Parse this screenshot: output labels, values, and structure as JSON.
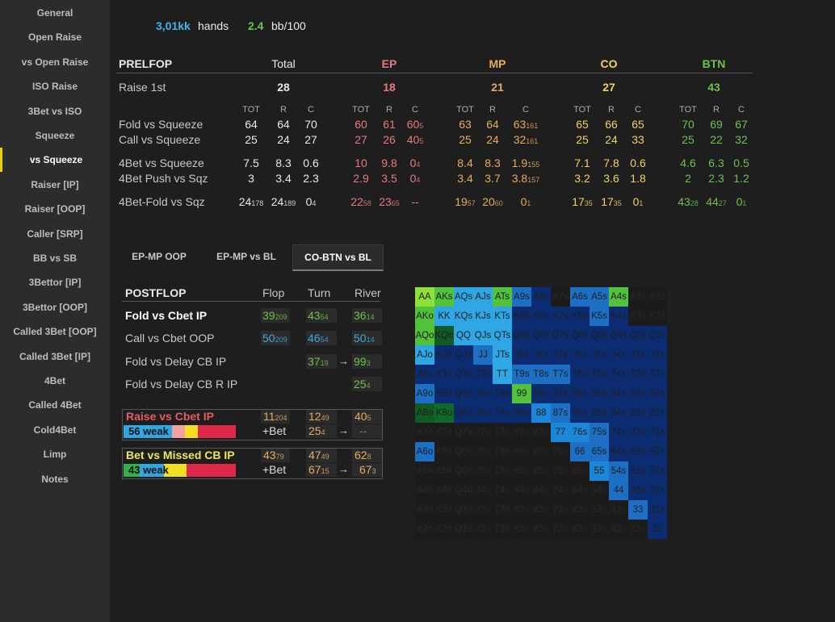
{
  "sidebar": {
    "items": [
      {
        "label": "General"
      },
      {
        "label": "Open Raise"
      },
      {
        "label": "vs Open Raise"
      },
      {
        "label": "ISO Raise"
      },
      {
        "label": "3Bet vs ISO"
      },
      {
        "label": "Squeeze"
      },
      {
        "label": "vs Squeeze",
        "active": true
      },
      {
        "label": "Raiser [IP]"
      },
      {
        "label": "Raiser [OOP]"
      },
      {
        "label": "Caller [SRP]"
      },
      {
        "label": "BB vs SB"
      },
      {
        "label": "3Bettor [IP]"
      },
      {
        "label": "3Bettor [OOP]"
      },
      {
        "label": "Called 3Bet [OOP]"
      },
      {
        "label": "Called 3Bet [IP]"
      },
      {
        "label": "4Bet"
      },
      {
        "label": "Called 4Bet"
      },
      {
        "label": "Cold4Bet"
      },
      {
        "label": "Limp"
      },
      {
        "label": "Notes"
      }
    ]
  },
  "summary": {
    "hands_value": "3,01kk",
    "hands_label": "hands",
    "bb_value": "2.4",
    "bb_label": "bb/100"
  },
  "preflop": {
    "title": "PRELFOP",
    "positions": [
      "Total",
      "EP",
      "MP",
      "CO",
      "BTN"
    ],
    "raise_first_label": "Raise 1st",
    "raise_first": [
      "28",
      "18",
      "21",
      "27",
      "43"
    ],
    "sub_headers": [
      "TOT",
      "R",
      "C"
    ],
    "rows": [
      {
        "label": "Fold vs Squeeze",
        "values": [
          [
            "64",
            "",
            ""
          ],
          [
            "64",
            "",
            ""
          ],
          [
            "70",
            "",
            ""
          ],
          [
            "60",
            "",
            ""
          ],
          [
            "61",
            "",
            ""
          ],
          [
            "60",
            "5",
            ""
          ],
          [
            "63",
            "",
            ""
          ],
          [
            "64",
            "",
            ""
          ],
          [
            "63",
            "161",
            ""
          ],
          [
            "65",
            "",
            ""
          ],
          [
            "66",
            "",
            ""
          ],
          [
            "65",
            "",
            ""
          ],
          [
            "70",
            "",
            ""
          ],
          [
            "69",
            "",
            ""
          ],
          [
            "67",
            "",
            ""
          ]
        ]
      },
      {
        "label": "Call vs Squeeze",
        "values": [
          [
            "25",
            "",
            ""
          ],
          [
            "24",
            "",
            ""
          ],
          [
            "27",
            "",
            ""
          ],
          [
            "27",
            "",
            ""
          ],
          [
            "26",
            "",
            ""
          ],
          [
            "40",
            "5",
            ""
          ],
          [
            "25",
            "",
            ""
          ],
          [
            "24",
            "",
            ""
          ],
          [
            "32",
            "161",
            ""
          ],
          [
            "25",
            "",
            ""
          ],
          [
            "24",
            "",
            ""
          ],
          [
            "33",
            "",
            ""
          ],
          [
            "25",
            "",
            ""
          ],
          [
            "22",
            "",
            ""
          ],
          [
            "32",
            "",
            ""
          ]
        ]
      },
      {
        "label": "4Bet vs Squeeze",
        "values": [
          [
            "7.5",
            "",
            ""
          ],
          [
            "8.3",
            "",
            ""
          ],
          [
            "0.6",
            "",
            ""
          ],
          [
            "10",
            "",
            ""
          ],
          [
            "9.8",
            "",
            ""
          ],
          [
            "0",
            "4",
            ""
          ],
          [
            "8.4",
            "",
            ""
          ],
          [
            "8.3",
            "",
            ""
          ],
          [
            "1.9",
            "155",
            ""
          ],
          [
            "7.1",
            "",
            ""
          ],
          [
            "7.8",
            "",
            ""
          ],
          [
            "0.6",
            "",
            ""
          ],
          [
            "4.6",
            "",
            ""
          ],
          [
            "6.3",
            "",
            ""
          ],
          [
            "0.5",
            "",
            ""
          ]
        ]
      },
      {
        "label": "4Bet Push vs Sqz",
        "values": [
          [
            "3",
            "",
            ""
          ],
          [
            "3.4",
            "",
            ""
          ],
          [
            "2.3",
            "",
            ""
          ],
          [
            "2.9",
            "",
            ""
          ],
          [
            "3.5",
            "",
            ""
          ],
          [
            "0",
            "4",
            ""
          ],
          [
            "3.4",
            "",
            ""
          ],
          [
            "3.7",
            "",
            ""
          ],
          [
            "3.8",
            "157",
            ""
          ],
          [
            "3.2",
            "",
            ""
          ],
          [
            "3.6",
            "",
            ""
          ],
          [
            "1.8",
            "",
            ""
          ],
          [
            "2",
            "",
            ""
          ],
          [
            "2.3",
            "",
            ""
          ],
          [
            "1.2",
            "",
            ""
          ]
        ]
      },
      {
        "label": "4Bet-Fold vs Sqz",
        "values": [
          [
            "24",
            "178",
            ""
          ],
          [
            "24",
            "189",
            ""
          ],
          [
            "0",
            "4",
            ""
          ],
          [
            "22",
            "58",
            ""
          ],
          [
            "23",
            "65",
            ""
          ],
          [
            "--",
            "",
            ""
          ],
          [
            "19",
            "57",
            ""
          ],
          [
            "20",
            "60",
            ""
          ],
          [
            "0",
            "1",
            ""
          ],
          [
            "17",
            "35",
            ""
          ],
          [
            "17",
            "35",
            ""
          ],
          [
            "0",
            "1",
            ""
          ],
          [
            "43",
            "28",
            ""
          ],
          [
            "44",
            "27",
            ""
          ],
          [
            "0",
            "1",
            ""
          ]
        ]
      }
    ]
  },
  "tabs": [
    {
      "label": "EP-MP OOP"
    },
    {
      "label": "EP-MP vs BL"
    },
    {
      "label": "CO-BTN vs BL",
      "active": true
    }
  ],
  "postflop": {
    "title": "POSTFLOP",
    "streets": [
      "Flop",
      "Turn",
      "River"
    ],
    "rows": [
      {
        "label": "Fold vs Cbet IP",
        "bold": true,
        "flop": [
          "39",
          "209"
        ],
        "turn": [
          "43",
          "54"
        ],
        "river": [
          "36",
          "14"
        ],
        "flop_color": "#6cc24a",
        "turn_color": "#6cc24a",
        "river_color": "#6cc24a"
      },
      {
        "label": "Call vs Cbet OOP",
        "flop": [
          "50",
          "209"
        ],
        "turn": [
          "46",
          "54"
        ],
        "river": [
          "50",
          "14"
        ],
        "flop_color": "#3fa9e0",
        "turn_color": "#3fa9e0",
        "river_color": "#3fa9e0"
      },
      {
        "label": "Fold vs Delay CB IP",
        "turn": [
          "37",
          "19"
        ],
        "river": [
          "99",
          "3"
        ],
        "turn_color": "#6cc24a",
        "river_color": "#6cc24a",
        "arrow": "→"
      },
      {
        "label": "Fold vs Delay CB R IP",
        "river": [
          "25",
          "4"
        ],
        "river_color": "#6cc24a"
      }
    ],
    "box1": {
      "label": "Raise vs Cbet IP",
      "flop": [
        "11",
        "204"
      ],
      "turn": [
        "12",
        "49"
      ],
      "river": [
        "40",
        "5"
      ],
      "weak": "56 weak",
      "bet_label": "+Bet",
      "bet_turn": [
        "25",
        "4"
      ],
      "arrow": "→",
      "bet_river": "--"
    },
    "box2": {
      "label": "Bet vs Missed CB IP",
      "flop": [
        "43",
        "79"
      ],
      "turn": [
        "47",
        "49"
      ],
      "river": [
        "62",
        "8"
      ],
      "weak": "43 weak",
      "bet_label": "+Bet",
      "bet_turn": [
        "67",
        "15"
      ],
      "arrow": "→",
      "bet_river": [
        "67",
        "3"
      ]
    }
  },
  "colors": {
    "blue": "#3fb6e6",
    "green": "#6cc24a",
    "red": "#e9797c",
    "orange": "#e7ac5d",
    "yellow": "#f2d064",
    "active_accent": "#e6d200"
  },
  "range_grid": {
    "ranks": [
      "A",
      "K",
      "Q",
      "J",
      "T",
      "9",
      "8",
      "7",
      "6",
      "5",
      "4",
      "3",
      "2"
    ],
    "cells": [
      [
        "AA",
        "AKs",
        "AQs",
        "AJs",
        "ATs",
        "A9s",
        "A8s",
        "A7s",
        "A6s",
        "A5s",
        "A4s",
        "A3s",
        "A2s"
      ],
      [
        "AKo",
        "KK",
        "KQs",
        "KJs",
        "KTs",
        "K9s",
        "K8s",
        "K7s",
        "K6s",
        "K5s",
        "K4s",
        "K3s",
        "K2s"
      ],
      [
        "AQo",
        "KQo",
        "QQ",
        "QJs",
        "QTs",
        "Q9s",
        "Q8s",
        "Q7s",
        "Q6s",
        "Q5s",
        "Q4s",
        "Q3s",
        "Q2s"
      ],
      [
        "AJo",
        "KJo",
        "QJo",
        "JJ",
        "JTs",
        "J9s",
        "J8s",
        "J7s",
        "J6s",
        "J5s",
        "J4s",
        "J3s",
        "J2s"
      ],
      [
        "ATo",
        "KTo",
        "QTo",
        "JTo",
        "TT",
        "T9s",
        "T8s",
        "T7s",
        "T6s",
        "T5s",
        "T4s",
        "T3s",
        "T2s"
      ],
      [
        "A9o",
        "K9o",
        "Q9o",
        "J9o",
        "T9o",
        "99",
        "98s",
        "97s",
        "96s",
        "95s",
        "94s",
        "93s",
        "92s"
      ],
      [
        "A8o",
        "K8o",
        "Q8o",
        "J8o",
        "T8o",
        "98o",
        "88",
        "87s",
        "86s",
        "85s",
        "84s",
        "83s",
        "82s"
      ],
      [
        "A7o",
        "K7o",
        "Q7o",
        "J7o",
        "T7o",
        "97o",
        "87o",
        "77",
        "76s",
        "75s",
        "74s",
        "73s",
        "72s"
      ],
      [
        "A6o",
        "K6o",
        "Q6o",
        "J6o",
        "T6o",
        "96o",
        "86o",
        "76o",
        "66",
        "65s",
        "64s",
        "63s",
        "62s"
      ],
      [
        "A5o",
        "K5o",
        "Q5o",
        "J5o",
        "T5o",
        "95o",
        "85o",
        "75o",
        "65o",
        "55",
        "54s",
        "53s",
        "52s"
      ],
      [
        "A4o",
        "K4o",
        "Q4o",
        "J4o",
        "T4o",
        "94o",
        "84o",
        "74o",
        "64o",
        "54o",
        "44",
        "43s",
        "42s"
      ],
      [
        "A3o",
        "K3o",
        "Q3o",
        "J3o",
        "T3o",
        "93o",
        "83o",
        "73o",
        "63o",
        "53o",
        "43o",
        "33",
        "32s"
      ],
      [
        "A2o",
        "K2o",
        "Q2o",
        "J2o",
        "T2o",
        "92o",
        "82o",
        "72o",
        "62o",
        "52o",
        "42o",
        "32o",
        "22"
      ]
    ]
  }
}
